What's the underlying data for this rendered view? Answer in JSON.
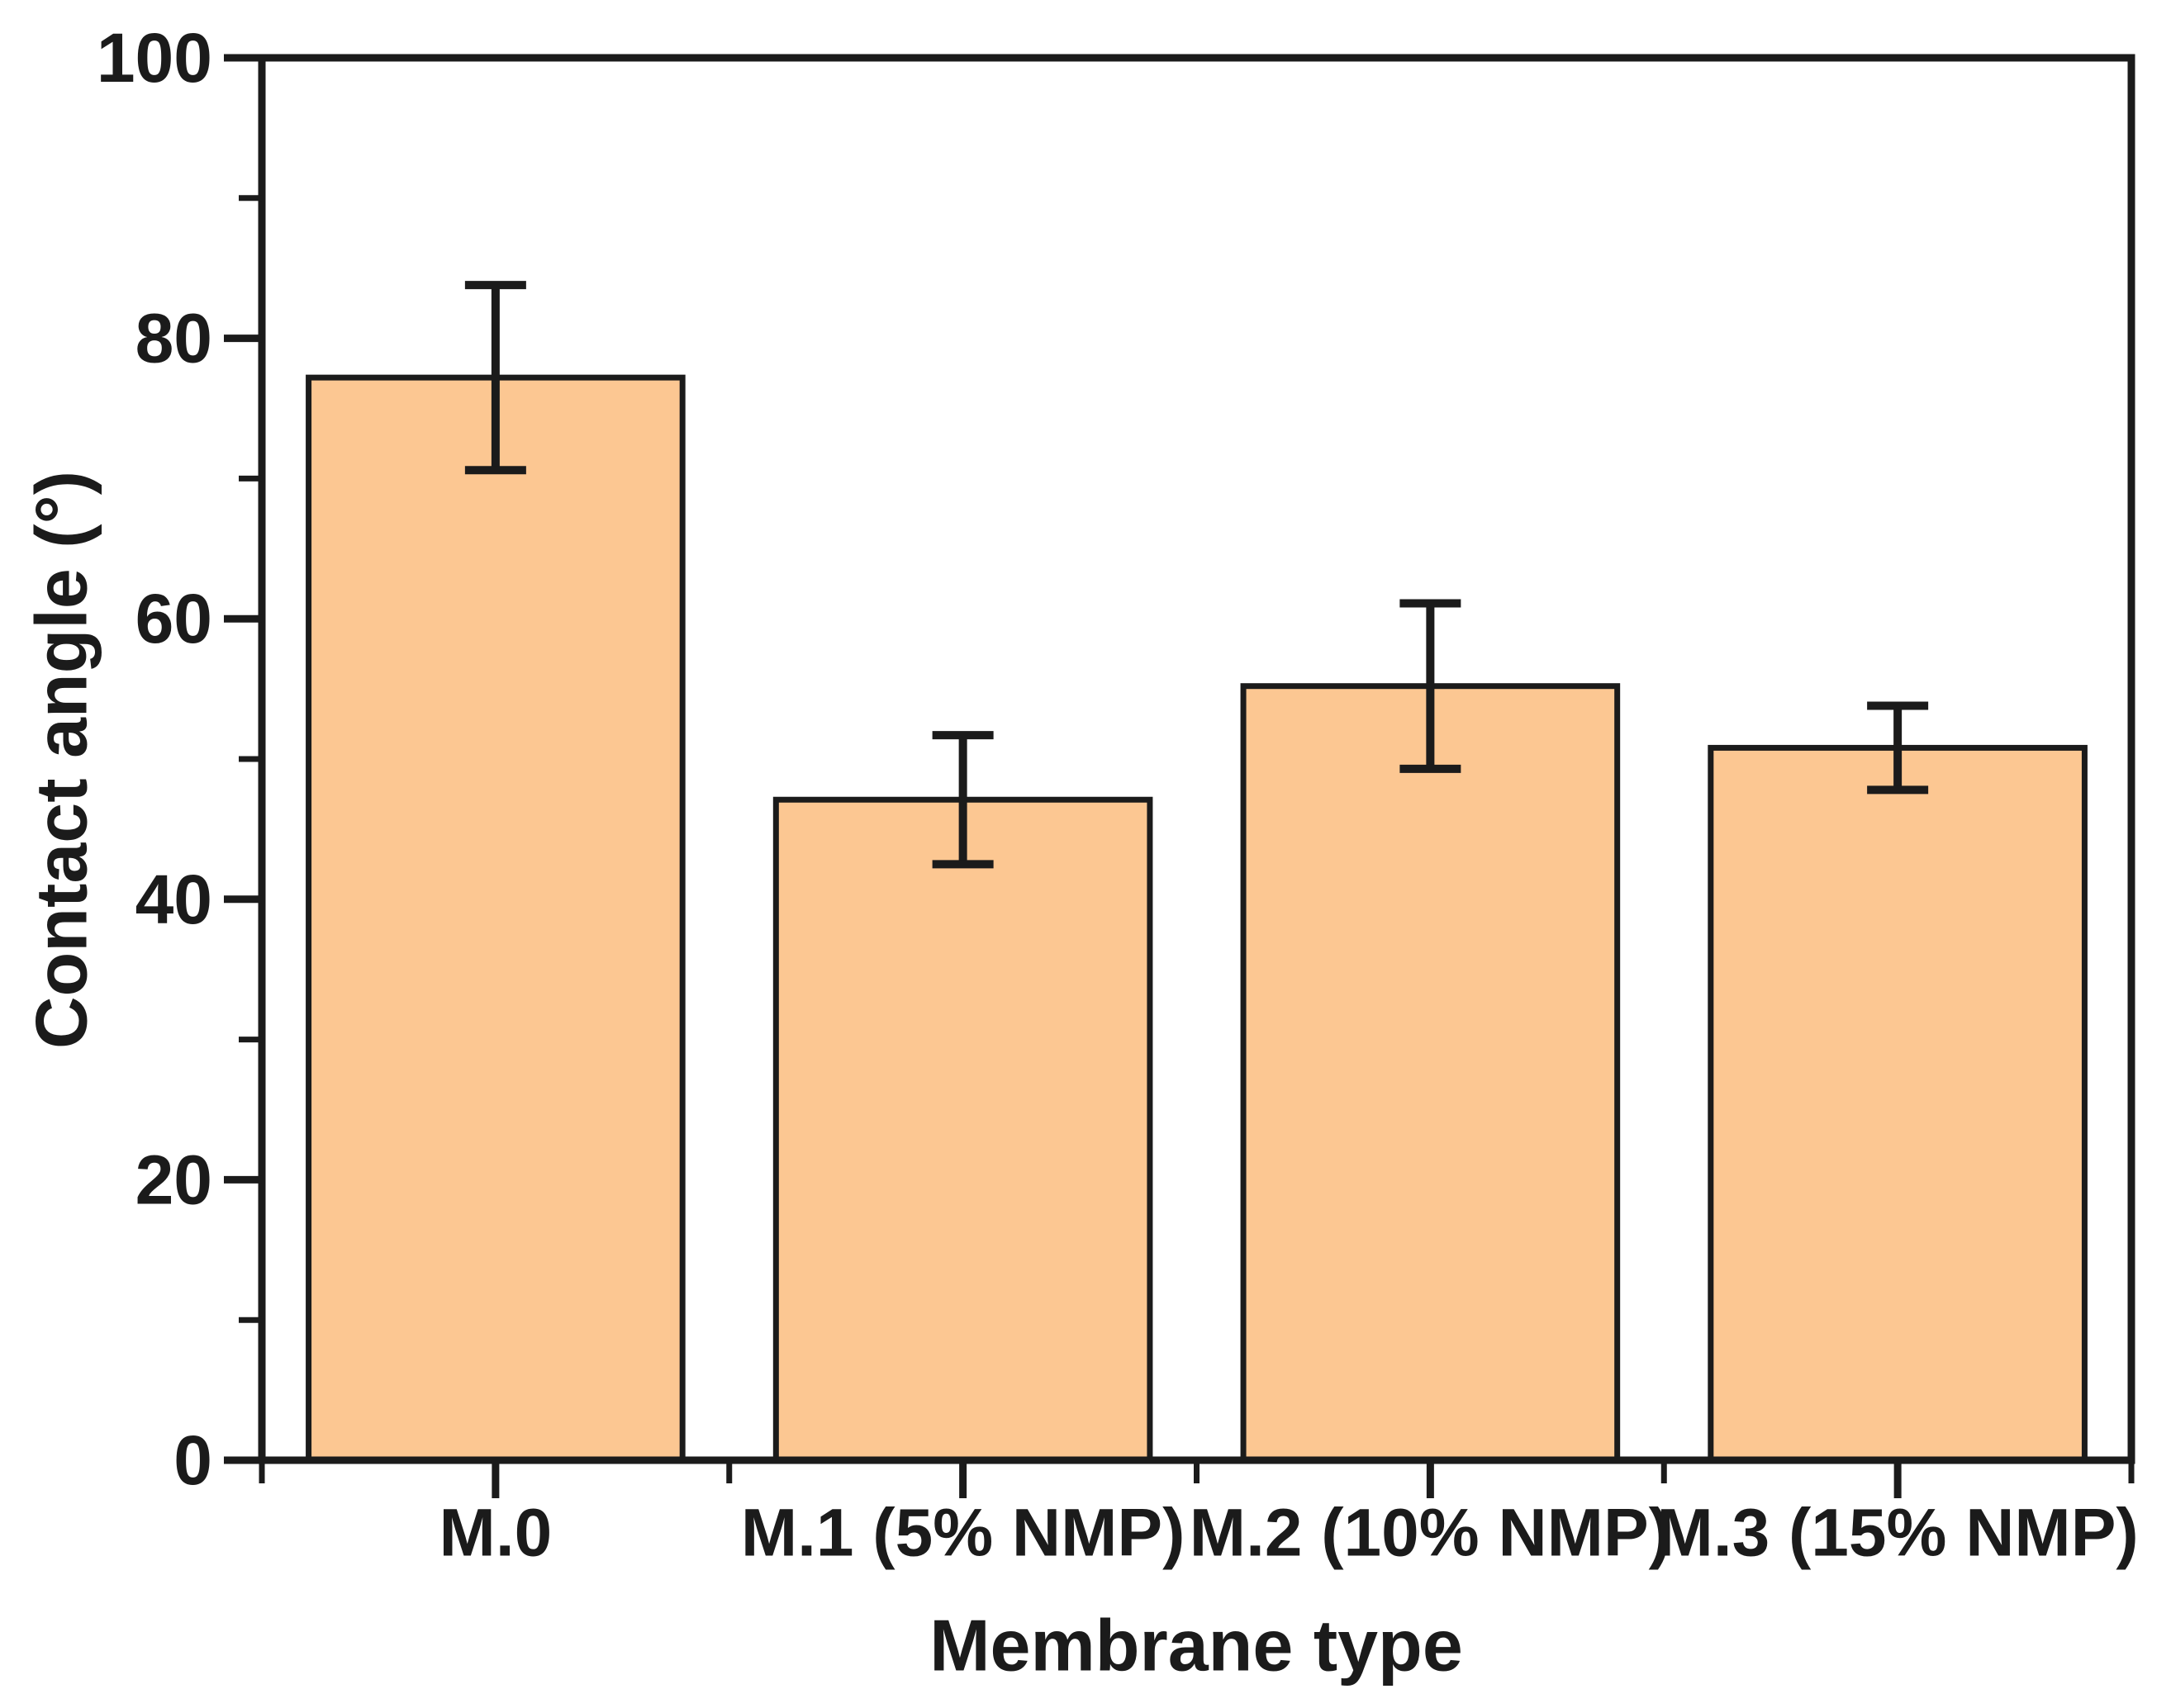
{
  "figure": {
    "background": "#ffffff"
  },
  "chart_data": {
    "type": "bar",
    "title": "",
    "xlabel": "Membrane type",
    "ylabel": "Contact angle (°)",
    "categories": [
      "M.0",
      "M.1 (5% NMP)",
      "M.2 (10% NMP)",
      "M.3 (15% NMP)"
    ],
    "values": [
      77.2,
      47.1,
      55.2,
      50.8
    ],
    "error_bars": [
      6.6,
      4.6,
      5.9,
      3.0
    ],
    "ylim": [
      0,
      100
    ],
    "y_major_step": 20,
    "y_minor_step": 10,
    "y_tick_labels": [
      "0",
      "20",
      "40",
      "60",
      "80",
      "100"
    ],
    "grid": "off",
    "legend": "none",
    "colors": {
      "bar_fill": "#fcc792",
      "bar_stroke": "#1b1b1b",
      "axis_color": "#1b1b1b",
      "error_bar_color": "#1b1b1b"
    }
  }
}
